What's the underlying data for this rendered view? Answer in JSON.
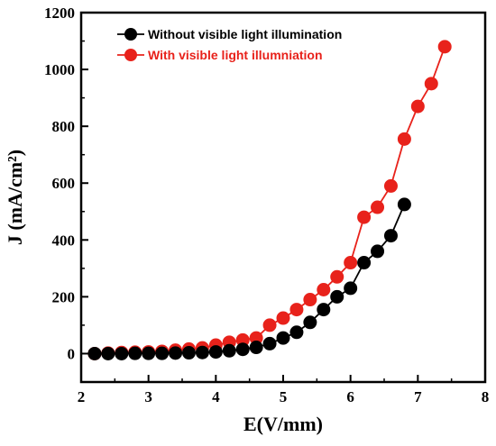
{
  "chart_data": {
    "type": "line",
    "xlabel": "E(V/mm)",
    "ylabel": "J (mA/cm²)",
    "xlim": [
      2,
      8
    ],
    "ylim": [
      -100,
      1200
    ],
    "xticks": [
      "2",
      "3",
      "4",
      "5",
      "6",
      "7",
      "8"
    ],
    "yticks": [
      "0",
      "200",
      "400",
      "600",
      "800",
      "1000",
      "1200"
    ],
    "grid": false,
    "legend_position": "top-left",
    "series": [
      {
        "name": "Without visible light illumination",
        "color": "#000000",
        "marker": "circle",
        "x": [
          2.2,
          2.4,
          2.6,
          2.8,
          3.0,
          3.2,
          3.4,
          3.6,
          3.8,
          4.0,
          4.2,
          4.4,
          4.6,
          4.8,
          5.0,
          5.2,
          5.4,
          5.6,
          5.8,
          6.0,
          6.2,
          6.4,
          6.6,
          6.8
        ],
        "y": [
          0,
          0,
          0,
          1,
          1,
          1,
          2,
          3,
          4,
          6,
          10,
          15,
          22,
          35,
          55,
          75,
          110,
          155,
          200,
          230,
          320,
          360,
          415,
          525
        ]
      },
      {
        "name": "With visible light illumniation",
        "color": "#e8221b",
        "marker": "circle",
        "x": [
          2.2,
          2.4,
          2.6,
          2.8,
          3.0,
          3.2,
          3.4,
          3.6,
          3.8,
          4.0,
          4.2,
          4.4,
          4.6,
          4.8,
          5.0,
          5.2,
          5.4,
          5.6,
          5.8,
          6.0,
          6.2,
          6.4,
          6.6,
          6.8,
          7.0,
          7.2,
          7.4
        ],
        "y": [
          0,
          2,
          4,
          5,
          6,
          8,
          12,
          16,
          20,
          30,
          40,
          48,
          55,
          100,
          125,
          155,
          190,
          225,
          270,
          320,
          480,
          515,
          590,
          755,
          870,
          950,
          1080
        ]
      }
    ]
  }
}
